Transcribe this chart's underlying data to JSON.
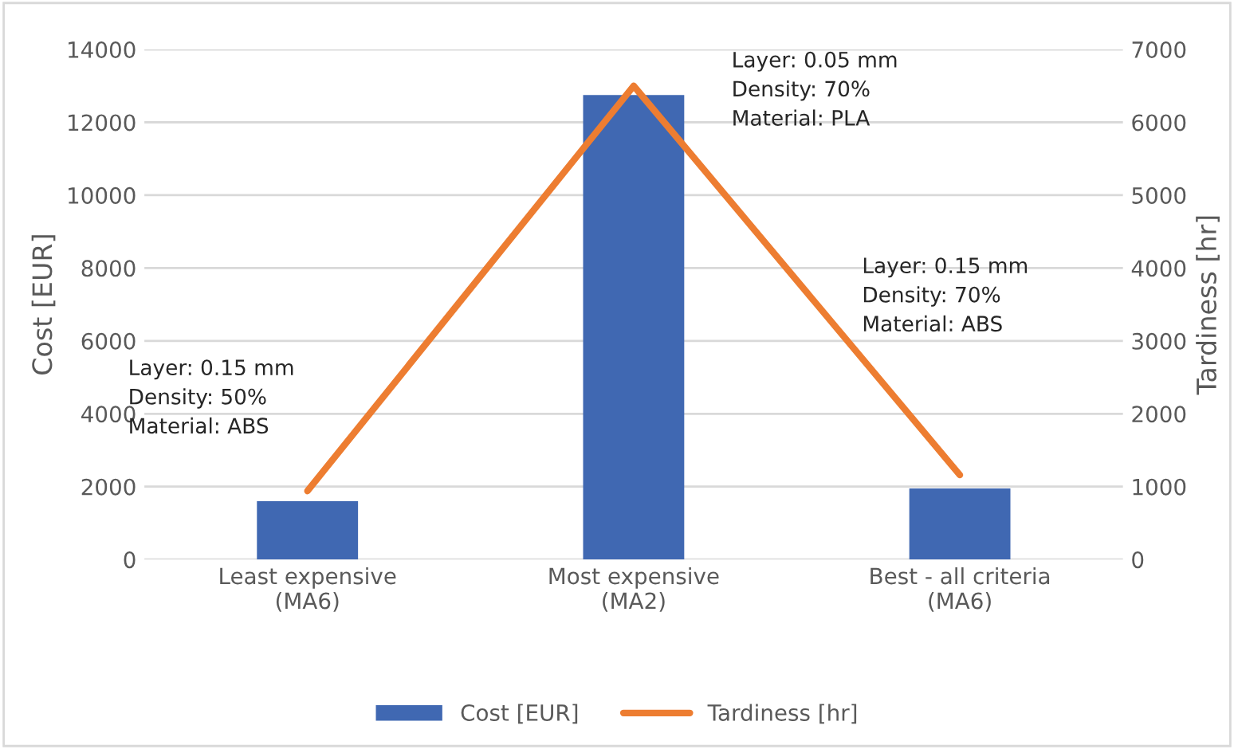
{
  "chart_data": {
    "type": "bar",
    "categories": [
      "Least expensive\n(MA6)",
      "Most expensive\n(MA2)",
      "Best - all criteria\n(MA6)"
    ],
    "series": [
      {
        "name": "Cost [EUR]",
        "color": "#4068b2",
        "values": [
          1600,
          12750,
          1950
        ]
      },
      {
        "name": "Tardiness [hr]",
        "type": "line",
        "axis": "y2",
        "color": "#ed7d31",
        "values": [
          940,
          6500,
          1160
        ]
      }
    ],
    "ylabel": "Cost [EUR]",
    "y2label": "Tardiness [hr]",
    "ylim": [
      0,
      14000
    ],
    "yticks": [
      0,
      2000,
      4000,
      6000,
      8000,
      10000,
      12000,
      14000
    ],
    "y2lim": [
      0,
      7000
    ],
    "y2ticks": [
      0,
      1000,
      2000,
      3000,
      4000,
      5000,
      6000,
      7000
    ],
    "annotations": [
      "Layer: 0.15 mm\nDensity: 50%\nMaterial: ABS",
      "Layer: 0.05 mm\nDensity: 70%\nMaterial: PLA",
      "Layer: 0.15 mm\nDensity: 70%\nMaterial: ABS"
    ],
    "grid": "y",
    "legend": "bottom",
    "marker": "none"
  }
}
